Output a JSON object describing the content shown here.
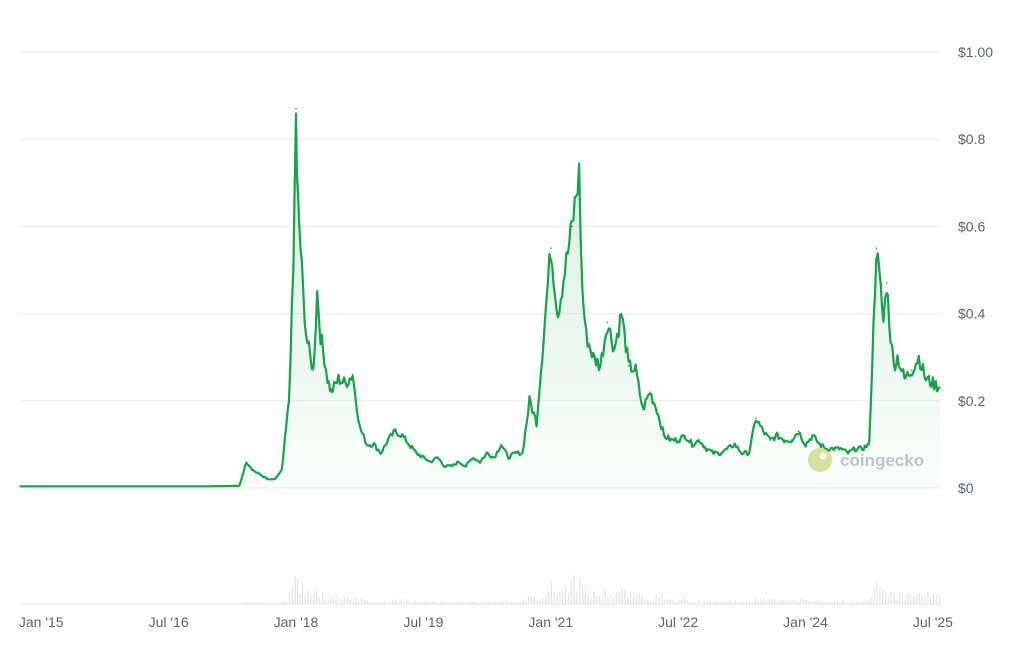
{
  "chart_data": {
    "type": "area",
    "title": "",
    "xlabel": "",
    "ylabel": "",
    "ylim": [
      0,
      1.0
    ],
    "y_ticks": [
      "$0",
      "$0.2",
      "$0.4",
      "$0.6",
      "$0.8",
      "$1.00"
    ],
    "y_tick_values": [
      0,
      0.2,
      0.4,
      0.6,
      0.8,
      1.0
    ],
    "x_ticks": [
      "Jan '15",
      "Jul '16",
      "Jan '18",
      "Jul '19",
      "Jan '21",
      "Jul '22",
      "Jan '24",
      "Jul '25"
    ],
    "x_tick_values": [
      "2015-01",
      "2016-07",
      "2018-01",
      "2019-07",
      "2021-01",
      "2022-07",
      "2024-01",
      "2025-07"
    ],
    "x_range": [
      "2014-10",
      "2025-08"
    ],
    "grid": true,
    "line_color": "#16a34a",
    "fill_color": "#16a34a",
    "volume_color": "#d6d9de",
    "series": [
      {
        "x": [
          "2014-10",
          "2015-01",
          "2015-07",
          "2016-01",
          "2016-07",
          "2017-01",
          "2017-05",
          "2017-06",
          "2017-07",
          "2017-08",
          "2017-09",
          "2017-10",
          "2017-11",
          "2017-12",
          "2017-12-20",
          "2018-01",
          "2018-01-05",
          "2018-01-15",
          "2018-02",
          "2018-02-15",
          "2018-03",
          "2018-03-15",
          "2018-04",
          "2018-04-15",
          "2018-05",
          "2018-05-15",
          "2018-06",
          "2018-07",
          "2018-08",
          "2018-09",
          "2018-10",
          "2018-11",
          "2018-12",
          "2019-01",
          "2019-02",
          "2019-03",
          "2019-04",
          "2019-05",
          "2019-06",
          "2019-07",
          "2019-08",
          "2019-09",
          "2019-10",
          "2019-11",
          "2019-12",
          "2020-01",
          "2020-02",
          "2020-03",
          "2020-04",
          "2020-05",
          "2020-06",
          "2020-07",
          "2020-08",
          "2020-09",
          "2020-10",
          "2020-11",
          "2020-12",
          "2021-01",
          "2021-02",
          "2021-03",
          "2021-04",
          "2021-05",
          "2021-05-15",
          "2021-06",
          "2021-07",
          "2021-08",
          "2021-09",
          "2021-10",
          "2021-11",
          "2021-12",
          "2022-01",
          "2022-02",
          "2022-03",
          "2022-04",
          "2022-05",
          "2022-06",
          "2022-07",
          "2022-08",
          "2022-09",
          "2022-10",
          "2022-11",
          "2022-12",
          "2023-01",
          "2023-02",
          "2023-03",
          "2023-04",
          "2023-05",
          "2023-06",
          "2023-07",
          "2023-08",
          "2023-09",
          "2023-10",
          "2023-11",
          "2023-12",
          "2024-01",
          "2024-02",
          "2024-03",
          "2024-04",
          "2024-05",
          "2024-06",
          "2024-07",
          "2024-08",
          "2024-09",
          "2024-10",
          "2024-11",
          "2024-11-20",
          "2024-12",
          "2024-12-15",
          "2025-01",
          "2025-01-15",
          "2025-02",
          "2025-03",
          "2025-04",
          "2025-05",
          "2025-06",
          "2025-07",
          "2025-08"
        ],
        "values": [
          0.004,
          0.004,
          0.004,
          0.004,
          0.004,
          0.004,
          0.005,
          0.06,
          0.04,
          0.03,
          0.02,
          0.02,
          0.04,
          0.2,
          0.5,
          0.87,
          0.7,
          0.6,
          0.45,
          0.35,
          0.3,
          0.27,
          0.45,
          0.35,
          0.3,
          0.25,
          0.22,
          0.25,
          0.24,
          0.26,
          0.14,
          0.1,
          0.1,
          0.08,
          0.11,
          0.13,
          0.12,
          0.1,
          0.08,
          0.07,
          0.06,
          0.07,
          0.05,
          0.05,
          0.06,
          0.05,
          0.07,
          0.06,
          0.08,
          0.07,
          0.1,
          0.07,
          0.08,
          0.08,
          0.2,
          0.15,
          0.35,
          0.55,
          0.4,
          0.5,
          0.6,
          0.72,
          0.45,
          0.35,
          0.3,
          0.28,
          0.38,
          0.32,
          0.4,
          0.28,
          0.27,
          0.18,
          0.22,
          0.18,
          0.12,
          0.11,
          0.11,
          0.12,
          0.1,
          0.11,
          0.09,
          0.08,
          0.08,
          0.09,
          0.1,
          0.08,
          0.08,
          0.16,
          0.13,
          0.11,
          0.12,
          0.11,
          0.11,
          0.13,
          0.1,
          0.12,
          0.1,
          0.09,
          0.09,
          0.09,
          0.08,
          0.09,
          0.09,
          0.1,
          0.55,
          0.45,
          0.38,
          0.47,
          0.35,
          0.28,
          0.3,
          0.25,
          0.27,
          0.3,
          0.25,
          0.24,
          0.23
        ]
      }
    ],
    "watermark": "coingecko"
  }
}
